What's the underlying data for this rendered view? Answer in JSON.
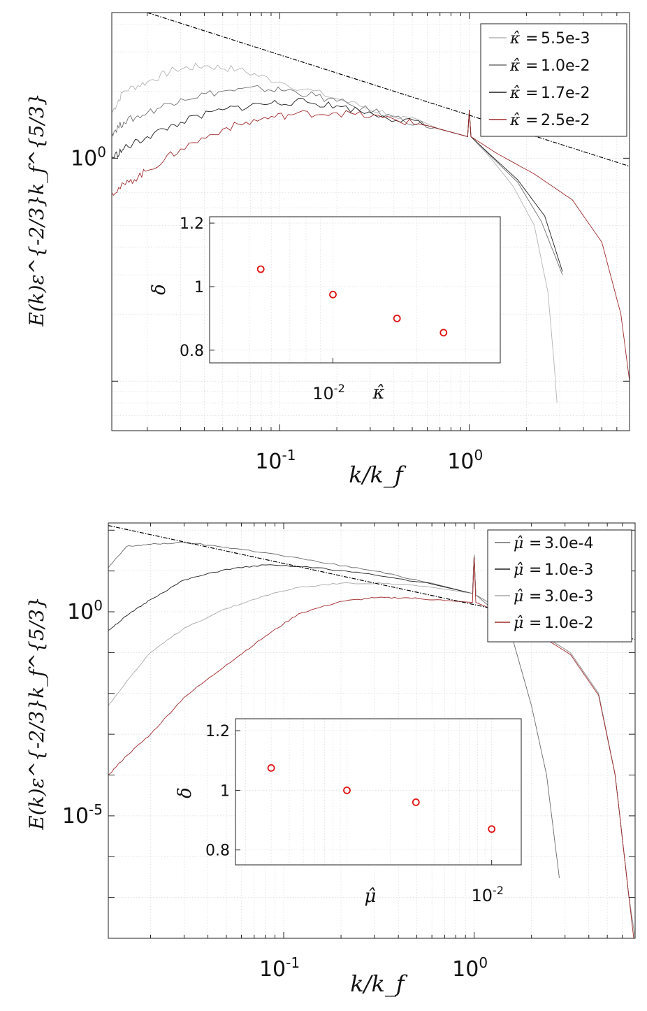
{
  "chart_data": [
    {
      "type": "line",
      "xscale": "log",
      "yscale": "log",
      "xlabel": "k/k_f",
      "ylabel": "E(k)ε^{-2/3}k_f^{5/3}",
      "xlim": [
        0.013,
        7
      ],
      "ylim": [
        0.06,
        4.5
      ],
      "x_ticks": [
        {
          "value": 0.1,
          "base": "10",
          "exp": "-1"
        },
        {
          "value": 1,
          "base": "10",
          "exp": "0"
        }
      ],
      "y_ticks": [
        {
          "value": 1,
          "base": "10",
          "exp": "0"
        }
      ],
      "legend_symbol": "κ̂",
      "legend_position": "top-right",
      "reference_line": {
        "style": "dash-dot",
        "slope": -0.667,
        "points": [
          [
            0.02,
            4.5
          ],
          [
            7,
            0.92
          ]
        ]
      },
      "series": [
        {
          "name": "5.5e-3",
          "color": "#b4b4b4",
          "points": [
            [
              0.013,
              1.6
            ],
            [
              0.015,
              2.0
            ],
            [
              0.02,
              2.2
            ],
            [
              0.028,
              2.5
            ],
            [
              0.04,
              2.6
            ],
            [
              0.06,
              2.5
            ],
            [
              0.1,
              2.2
            ],
            [
              0.2,
              1.85
            ],
            [
              0.4,
              1.55
            ],
            [
              0.7,
              1.35
            ],
            [
              0.98,
              1.25
            ],
            [
              1.0,
              1.65
            ],
            [
              1.02,
              1.25
            ],
            [
              1.3,
              1.0
            ],
            [
              1.7,
              0.75
            ],
            [
              2.2,
              0.5
            ],
            [
              2.6,
              0.25
            ],
            [
              2.8,
              0.12
            ],
            [
              2.9,
              0.08
            ]
          ]
        },
        {
          "name": "1.0e-2",
          "color": "#707070",
          "points": [
            [
              0.013,
              1.3
            ],
            [
              0.015,
              1.45
            ],
            [
              0.02,
              1.6
            ],
            [
              0.03,
              1.85
            ],
            [
              0.05,
              2.0
            ],
            [
              0.08,
              2.05
            ],
            [
              0.12,
              2.0
            ],
            [
              0.2,
              1.8
            ],
            [
              0.4,
              1.53
            ],
            [
              0.7,
              1.35
            ],
            [
              0.98,
              1.25
            ],
            [
              1.0,
              1.65
            ],
            [
              1.02,
              1.25
            ],
            [
              1.3,
              1.02
            ],
            [
              1.8,
              0.78
            ],
            [
              2.4,
              0.52
            ],
            [
              3.1,
              0.3
            ]
          ]
        },
        {
          "name": "1.7e-2",
          "color": "#1e1e1e",
          "points": [
            [
              0.013,
              1.0
            ],
            [
              0.015,
              1.1
            ],
            [
              0.02,
              1.25
            ],
            [
              0.03,
              1.45
            ],
            [
              0.05,
              1.65
            ],
            [
              0.08,
              1.75
            ],
            [
              0.12,
              1.8
            ],
            [
              0.2,
              1.72
            ],
            [
              0.35,
              1.55
            ],
            [
              0.6,
              1.4
            ],
            [
              0.98,
              1.25
            ],
            [
              1.0,
              1.65
            ],
            [
              1.02,
              1.25
            ],
            [
              1.3,
              1.03
            ],
            [
              1.8,
              0.8
            ],
            [
              2.5,
              0.55
            ],
            [
              3.1,
              0.31
            ]
          ]
        },
        {
          "name": "2.5e-2",
          "color": "#a0282a",
          "points": [
            [
              0.013,
              0.7
            ],
            [
              0.016,
              0.78
            ],
            [
              0.02,
              0.88
            ],
            [
              0.03,
              1.1
            ],
            [
              0.05,
              1.35
            ],
            [
              0.08,
              1.5
            ],
            [
              0.12,
              1.58
            ],
            [
              0.2,
              1.6
            ],
            [
              0.35,
              1.52
            ],
            [
              0.6,
              1.4
            ],
            [
              0.98,
              1.25
            ],
            [
              1.0,
              1.65
            ],
            [
              1.02,
              1.25
            ],
            [
              1.4,
              1.05
            ],
            [
              2.2,
              0.85
            ],
            [
              3.5,
              0.65
            ],
            [
              5.0,
              0.42
            ],
            [
              6.3,
              0.2
            ],
            [
              7.0,
              0.1
            ]
          ]
        }
      ],
      "inset": {
        "xscale": "log",
        "xlim": [
          0.0036,
          0.04
        ],
        "ylim": [
          0.76,
          1.22
        ],
        "y_ticks": [
          0.8,
          1,
          1.2
        ],
        "x_ticks": [
          {
            "value": 0.01,
            "base": "10",
            "exp": "-2"
          }
        ],
        "ylabel": "δ",
        "xlabel": "κ̂",
        "points": [
          [
            0.0055,
            1.055
          ],
          [
            0.01,
            0.975
          ],
          [
            0.017,
            0.9
          ],
          [
            0.025,
            0.855
          ]
        ],
        "marker_color": "#e01010"
      }
    },
    {
      "type": "line",
      "xscale": "log",
      "yscale": "log",
      "xlabel": "k/k_f",
      "ylabel": "E(k)ε^{-2/3}k_f^{5/3}",
      "xlim": [
        0.012,
        7
      ],
      "ylim": [
        1e-08,
        150
      ],
      "x_ticks": [
        {
          "value": 0.1,
          "base": "10",
          "exp": "-1"
        },
        {
          "value": 1,
          "base": "10",
          "exp": "0"
        }
      ],
      "y_ticks": [
        {
          "value": 1,
          "base": "10",
          "exp": "0"
        },
        {
          "value": 1e-05,
          "base": "10",
          "exp": "-5"
        }
      ],
      "legend_symbol": "μ̂",
      "legend_position": "top-right",
      "reference_line": {
        "style": "dash-dot",
        "slope": -0.667,
        "points": [
          [
            0.012,
            130
          ],
          [
            7,
            0.21
          ]
        ]
      },
      "series": [
        {
          "name": "3.0e-4",
          "color": "#6a6a6a",
          "points": [
            [
              0.012,
              12
            ],
            [
              0.015,
              40
            ],
            [
              0.02,
              45
            ],
            [
              0.03,
              50
            ],
            [
              0.05,
              38
            ],
            [
              0.08,
              28
            ],
            [
              0.15,
              17
            ],
            [
              0.3,
              10
            ],
            [
              0.6,
              5
            ],
            [
              0.98,
              2.8
            ],
            [
              1.0,
              25
            ],
            [
              1.02,
              2.6
            ],
            [
              1.3,
              1.0
            ],
            [
              1.6,
              0.2
            ],
            [
              2.0,
              0.005
            ],
            [
              2.4,
              0.0001
            ],
            [
              2.8,
              3e-07
            ]
          ]
        },
        {
          "name": "1.0e-3",
          "color": "#1e1e1e",
          "points": [
            [
              0.012,
              0.35
            ],
            [
              0.015,
              0.8
            ],
            [
              0.02,
              2.0
            ],
            [
              0.03,
              6
            ],
            [
              0.05,
              11
            ],
            [
              0.08,
              14
            ],
            [
              0.15,
              12
            ],
            [
              0.3,
              8
            ],
            [
              0.6,
              4.8
            ],
            [
              0.98,
              2.8
            ],
            [
              1.0,
              25
            ],
            [
              1.02,
              2.6
            ],
            [
              1.5,
              0.9
            ],
            [
              2.2,
              0.3
            ],
            [
              3.2,
              0.1
            ],
            [
              4.5,
              0.01
            ],
            [
              5.5,
              0.0001
            ],
            [
              6.5,
              1e-07
            ],
            [
              7.0,
              1e-08
            ]
          ]
        },
        {
          "name": "3.0e-3",
          "color": "#a8a8a8",
          "points": [
            [
              0.012,
              0.005
            ],
            [
              0.015,
              0.02
            ],
            [
              0.02,
              0.1
            ],
            [
              0.03,
              0.4
            ],
            [
              0.05,
              1.2
            ],
            [
              0.08,
              2.5
            ],
            [
              0.12,
              4
            ],
            [
              0.2,
              5
            ],
            [
              0.35,
              5
            ],
            [
              0.6,
              4
            ],
            [
              0.98,
              2.8
            ],
            [
              1.0,
              25
            ],
            [
              1.02,
              2.6
            ],
            [
              1.5,
              0.9
            ],
            [
              2.2,
              0.3
            ],
            [
              3.2,
              0.1
            ],
            [
              4.5,
              0.01
            ],
            [
              5.5,
              0.0001
            ],
            [
              6.5,
              1e-07
            ],
            [
              7.0,
              1e-08
            ]
          ]
        },
        {
          "name": "1.0e-2",
          "color": "#a0282a",
          "points": [
            [
              0.012,
              0.0001
            ],
            [
              0.015,
              0.0003
            ],
            [
              0.02,
              0.001
            ],
            [
              0.03,
              0.008
            ],
            [
              0.05,
              0.05
            ],
            [
              0.08,
              0.25
            ],
            [
              0.12,
              0.9
            ],
            [
              0.2,
              1.8
            ],
            [
              0.3,
              2.2
            ],
            [
              0.45,
              2.2
            ],
            [
              0.7,
              1.9
            ],
            [
              0.98,
              1.7
            ],
            [
              1.0,
              22
            ],
            [
              1.02,
              1.7
            ],
            [
              1.5,
              0.8
            ],
            [
              2.2,
              0.27
            ],
            [
              3.2,
              0.09
            ],
            [
              4.5,
              0.009
            ],
            [
              5.5,
              0.0001
            ],
            [
              6.5,
              1e-07
            ],
            [
              7.0,
              5e-09
            ]
          ]
        }
      ],
      "inset": {
        "xscale": "log",
        "xlim": [
          0.00017,
          0.016
        ],
        "ylim": [
          0.75,
          1.24
        ],
        "y_ticks": [
          0.8,
          1,
          1.2
        ],
        "x_ticks": [
          {
            "value": 0.01,
            "base": "10",
            "exp": "-2"
          }
        ],
        "ylabel": "δ",
        "xlabel": "μ̂",
        "points": [
          [
            0.0003,
            1.075
          ],
          [
            0.001,
            1.0
          ],
          [
            0.003,
            0.96
          ],
          [
            0.01,
            0.87
          ]
        ],
        "marker_color": "#e01010"
      }
    }
  ]
}
